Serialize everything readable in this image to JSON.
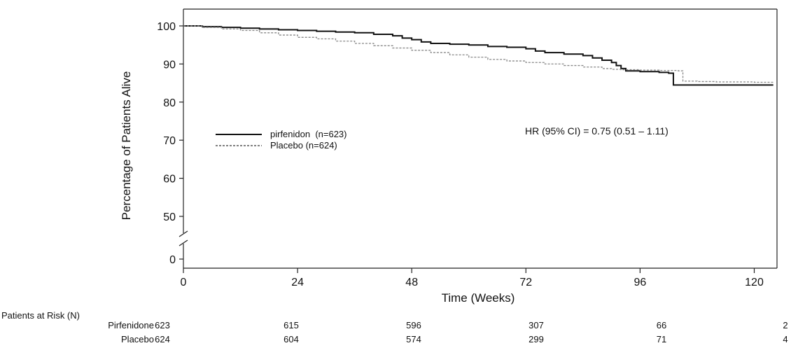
{
  "chart_data": {
    "type": "line",
    "title": "",
    "xlabel": "Time (Weeks)",
    "ylabel": "Percentage of Patients Alive",
    "xlim": [
      0,
      124
    ],
    "ylim": [
      0,
      103
    ],
    "x_ticks": [
      0,
      24,
      48,
      72,
      96,
      120
    ],
    "y_ticks": [
      0,
      50,
      60,
      70,
      80,
      90,
      100
    ],
    "y_axis_break": "between 0 and 50",
    "grid": false,
    "legend_position": "center-left",
    "hr_annotation": "HR (95% CI) = 0.75 (0.51 – 1.11)",
    "series": [
      {
        "name": "pirfenidon  (n=623)",
        "style": "solid",
        "color": "#111111",
        "points": [
          [
            0,
            100
          ],
          [
            4,
            99.8
          ],
          [
            8,
            99.6
          ],
          [
            12,
            99.4
          ],
          [
            16,
            99.2
          ],
          [
            20,
            99.0
          ],
          [
            24,
            98.8
          ],
          [
            28,
            98.6
          ],
          [
            32,
            98.4
          ],
          [
            36,
            98.2
          ],
          [
            40,
            97.8
          ],
          [
            44,
            97.4
          ],
          [
            46,
            96.8
          ],
          [
            48,
            96.4
          ],
          [
            50,
            95.8
          ],
          [
            52,
            95.4
          ],
          [
            56,
            95.2
          ],
          [
            60,
            95.0
          ],
          [
            64,
            94.6
          ],
          [
            68,
            94.4
          ],
          [
            72,
            94.0
          ],
          [
            74,
            93.4
          ],
          [
            76,
            93.0
          ],
          [
            80,
            92.6
          ],
          [
            84,
            92.2
          ],
          [
            86,
            91.6
          ],
          [
            88,
            91.0
          ],
          [
            90,
            90.4
          ],
          [
            91,
            89.6
          ],
          [
            92,
            88.8
          ],
          [
            93,
            88.2
          ],
          [
            96,
            88.0
          ],
          [
            100,
            87.8
          ],
          [
            102,
            87.6
          ],
          [
            103,
            84.5
          ],
          [
            106,
            84.5
          ],
          [
            112,
            84.5
          ],
          [
            120,
            84.5
          ],
          [
            124,
            84.5
          ]
        ]
      },
      {
        "name": "Placebo (n=624)",
        "style": "dashed",
        "color": "#777777",
        "points": [
          [
            0,
            100
          ],
          [
            4,
            99.6
          ],
          [
            8,
            99.2
          ],
          [
            12,
            98.8
          ],
          [
            16,
            98.2
          ],
          [
            20,
            97.6
          ],
          [
            24,
            97.0
          ],
          [
            28,
            96.6
          ],
          [
            32,
            96.0
          ],
          [
            36,
            95.4
          ],
          [
            40,
            94.8
          ],
          [
            44,
            94.2
          ],
          [
            48,
            93.6
          ],
          [
            52,
            93.0
          ],
          [
            56,
            92.4
          ],
          [
            60,
            91.8
          ],
          [
            64,
            91.2
          ],
          [
            68,
            90.8
          ],
          [
            72,
            90.4
          ],
          [
            76,
            90.0
          ],
          [
            80,
            89.6
          ],
          [
            84,
            89.2
          ],
          [
            88,
            88.8
          ],
          [
            90,
            88.6
          ],
          [
            92,
            88.5
          ],
          [
            96,
            88.4
          ],
          [
            100,
            88.3
          ],
          [
            104,
            88.2
          ],
          [
            105,
            85.5
          ],
          [
            108,
            85.4
          ],
          [
            112,
            85.3
          ],
          [
            120,
            85.2
          ],
          [
            124,
            85.2
          ]
        ]
      }
    ]
  },
  "risk_table": {
    "title": "Patients at Risk (N)",
    "columns": [
      0,
      24,
      48,
      72,
      96,
      120
    ],
    "rows": [
      {
        "label": "Pirfenidone",
        "values": [
          "623",
          "615",
          "596",
          "307",
          "66",
          "2"
        ]
      },
      {
        "label": "Placebo",
        "values": [
          "624",
          "604",
          "574",
          "299",
          "71",
          "4"
        ]
      }
    ]
  }
}
